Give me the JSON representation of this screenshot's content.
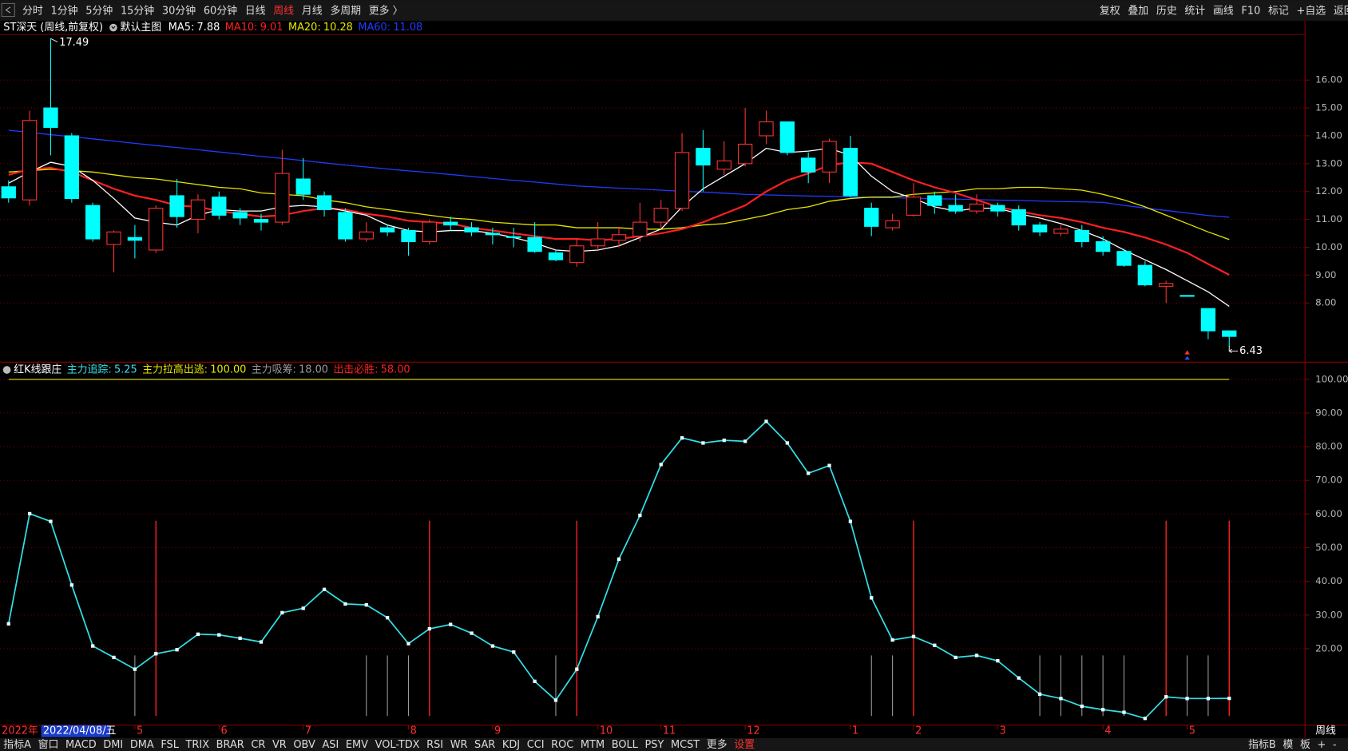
{
  "toolbar": {
    "periods": [
      "分时",
      "1分钟",
      "5分钟",
      "15分钟",
      "30分钟",
      "60分钟",
      "日线",
      "周线",
      "月线",
      "多周期",
      "更多 〉"
    ],
    "tools": [
      "复权",
      "叠加",
      "历史",
      "统计",
      "画线",
      "F10",
      "标记",
      "+自选",
      "返回"
    ]
  },
  "bottom_bar": {
    "indicators": [
      "指标A",
      "窗口",
      "MACD",
      "DMI",
      "DMA",
      "FSL",
      "TRIX",
      "BRAR",
      "CR",
      "VR",
      "OBV",
      "ASI",
      "EMV",
      "VOL-TDX",
      "RSI",
      "WR",
      "SAR",
      "KDJ",
      "CCI",
      "ROC",
      "MTM",
      "BOLL",
      "PSY",
      "MCST",
      "更多",
      "设置"
    ],
    "right": [
      "指标B",
      "模",
      "板",
      "+",
      "-"
    ]
  },
  "chart_data": [
    {
      "type": "candlestick",
      "title": "ST深天 (周线,前复权)",
      "subtitle": "默认主图",
      "open": [
        12.17,
        11.7,
        15.0,
        14.0,
        11.5,
        10.1,
        10.35,
        9.9,
        11.85,
        11.0,
        11.8,
        11.25,
        11.0,
        10.9,
        12.45,
        11.85,
        11.25,
        10.3,
        10.7,
        10.6,
        10.2,
        10.9,
        10.7,
        10.5,
        10.38,
        10.35,
        9.8,
        9.45,
        10.05,
        10.25,
        10.4,
        10.9,
        11.4,
        13.55,
        12.8,
        13.0,
        14.0,
        14.5,
        13.2,
        12.7,
        13.55,
        11.4,
        10.7,
        11.15,
        11.85,
        11.5,
        11.3,
        11.5,
        11.35,
        10.8,
        10.5,
        10.6,
        10.2,
        9.85,
        9.35,
        8.6,
        8.27,
        7.8,
        7.0
      ],
      "high": [
        12.4,
        14.9,
        17.49,
        14.1,
        11.6,
        10.6,
        10.8,
        11.5,
        12.45,
        11.9,
        12.0,
        11.4,
        11.2,
        13.5,
        13.2,
        12.0,
        11.4,
        10.9,
        10.8,
        10.7,
        11.0,
        11.1,
        10.9,
        10.7,
        10.7,
        10.9,
        9.9,
        10.3,
        10.9,
        10.7,
        11.6,
        11.7,
        14.1,
        14.2,
        13.8,
        15.0,
        14.9,
        14.5,
        13.4,
        13.9,
        14.0,
        11.6,
        11.2,
        12.3,
        12.0,
        11.9,
        11.9,
        11.6,
        11.5,
        10.9,
        10.8,
        10.8,
        10.4,
        9.95,
        9.5,
        8.8,
        8.27,
        7.8,
        7.0
      ],
      "low": [
        11.6,
        11.5,
        13.3,
        11.6,
        10.2,
        9.1,
        9.6,
        9.8,
        10.7,
        10.5,
        11.0,
        10.8,
        10.6,
        10.8,
        11.7,
        11.1,
        10.2,
        10.2,
        10.4,
        9.7,
        10.1,
        10.6,
        10.4,
        10.1,
        10.0,
        9.8,
        9.5,
        9.3,
        9.9,
        10.0,
        10.2,
        10.7,
        11.3,
        12.0,
        12.6,
        12.9,
        13.7,
        13.3,
        12.3,
        12.3,
        11.8,
        10.4,
        10.6,
        11.1,
        11.2,
        11.2,
        11.2,
        11.1,
        10.6,
        10.4,
        10.4,
        10.0,
        9.7,
        9.3,
        8.6,
        8.0,
        8.25,
        6.7,
        6.43
      ],
      "close": [
        11.77,
        14.55,
        14.3,
        11.75,
        10.3,
        10.55,
        10.25,
        11.4,
        11.1,
        11.7,
        11.15,
        11.05,
        10.9,
        12.65,
        11.9,
        11.35,
        10.3,
        10.55,
        10.55,
        10.2,
        10.9,
        10.8,
        10.55,
        10.45,
        10.36,
        9.85,
        9.55,
        10.05,
        10.3,
        10.45,
        10.9,
        11.4,
        13.4,
        12.95,
        13.1,
        13.7,
        14.5,
        13.4,
        12.7,
        13.8,
        11.85,
        10.75,
        10.95,
        11.8,
        11.5,
        11.3,
        11.55,
        11.3,
        10.8,
        10.55,
        10.65,
        10.2,
        9.85,
        9.35,
        8.65,
        8.7,
        8.25,
        7.0,
        6.8
      ],
      "up_color": "#ff3232",
      "down_color": "#00ffff",
      "series": [
        {
          "name": "MA5:",
          "value": 7.88,
          "color": "#ffffff",
          "values": [
            12.3,
            12.7,
            13.05,
            12.9,
            12.4,
            11.75,
            11.05,
            10.9,
            10.8,
            11.15,
            11.35,
            11.3,
            11.3,
            11.45,
            11.5,
            11.45,
            11.3,
            11.15,
            10.8,
            10.6,
            10.55,
            10.6,
            10.6,
            10.5,
            10.35,
            10.15,
            9.9,
            9.85,
            9.9,
            10.05,
            10.35,
            10.65,
            11.45,
            12.1,
            12.55,
            13.0,
            13.55,
            13.4,
            13.45,
            13.55,
            13.3,
            12.55,
            12.0,
            11.75,
            11.45,
            11.3,
            11.4,
            11.4,
            11.2,
            11.05,
            10.85,
            10.6,
            10.3,
            9.9,
            9.55,
            9.2,
            8.8,
            8.4,
            7.88
          ]
        },
        {
          "name": "MA10:",
          "value": 9.01,
          "color": "#ff2020",
          "values": [
            12.6,
            12.8,
            12.85,
            12.7,
            12.4,
            12.1,
            11.85,
            11.7,
            11.5,
            11.45,
            11.3,
            11.2,
            11.1,
            11.15,
            11.3,
            11.4,
            11.35,
            11.2,
            11.1,
            10.95,
            10.9,
            10.85,
            10.7,
            10.6,
            10.5,
            10.4,
            10.3,
            10.3,
            10.25,
            10.3,
            10.4,
            10.5,
            10.65,
            10.9,
            11.2,
            11.5,
            12.0,
            12.4,
            12.65,
            12.95,
            13.05,
            13.0,
            12.7,
            12.4,
            12.15,
            11.95,
            11.7,
            11.45,
            11.3,
            11.15,
            11.05,
            10.9,
            10.7,
            10.55,
            10.35,
            10.1,
            9.8,
            9.4,
            9.01
          ]
        },
        {
          "name": "MA20:",
          "value": 10.28,
          "color": "#e6e600",
          "values": [
            12.7,
            12.75,
            12.8,
            12.75,
            12.7,
            12.6,
            12.5,
            12.45,
            12.35,
            12.25,
            12.15,
            12.1,
            11.95,
            11.9,
            11.85,
            11.7,
            11.6,
            11.45,
            11.35,
            11.25,
            11.15,
            11.05,
            11.0,
            10.9,
            10.85,
            10.8,
            10.8,
            10.7,
            10.7,
            10.7,
            10.65,
            10.65,
            10.7,
            10.8,
            10.85,
            11.0,
            11.15,
            11.35,
            11.45,
            11.65,
            11.75,
            11.8,
            11.8,
            11.9,
            11.95,
            12.0,
            12.1,
            12.1,
            12.15,
            12.15,
            12.1,
            12.05,
            11.9,
            11.7,
            11.45,
            11.15,
            10.85,
            10.55,
            10.28
          ]
        },
        {
          "name": "MA60:",
          "value": 11.08,
          "color": "#1e3cff",
          "values": [
            14.2,
            14.12,
            14.04,
            13.97,
            13.89,
            13.81,
            13.73,
            13.65,
            13.58,
            13.5,
            13.42,
            13.34,
            13.26,
            13.19,
            13.11,
            13.03,
            12.95,
            12.88,
            12.81,
            12.74,
            12.68,
            12.61,
            12.54,
            12.47,
            12.4,
            12.34,
            12.27,
            12.2,
            12.16,
            12.12,
            12.09,
            12.05,
            12.01,
            11.98,
            11.94,
            11.9,
            11.88,
            11.86,
            11.84,
            11.83,
            11.81,
            11.79,
            11.78,
            11.76,
            11.74,
            11.73,
            11.71,
            11.69,
            11.68,
            11.66,
            11.64,
            11.63,
            11.61,
            11.5,
            11.41,
            11.32,
            11.23,
            11.14,
            11.08
          ]
        }
      ],
      "ylim": [
        5.907,
        17.636
      ],
      "yticks": [
        {
          "value": 8,
          "label": "8.00"
        },
        {
          "value": 9,
          "label": "9.00"
        },
        {
          "value": 10,
          "label": "10.00"
        },
        {
          "value": 11,
          "label": "11.00"
        },
        {
          "value": 12,
          "label": "12.00"
        },
        {
          "value": 13,
          "label": "13.00"
        },
        {
          "value": 14,
          "label": "14.00"
        },
        {
          "value": 15,
          "label": "15.00"
        },
        {
          "value": 16,
          "label": "16.00"
        }
      ],
      "grid": true
    },
    {
      "type": "line",
      "title": "红K线跟庄",
      "x_start_label": "2022年",
      "cursor_label": "2022/04/08/五",
      "period_label": "周线",
      "categories": [
        null,
        null,
        null,
        null,
        null,
        null,
        "5",
        null,
        null,
        null,
        "6",
        null,
        null,
        null,
        "7",
        null,
        null,
        null,
        null,
        "8",
        null,
        null,
        null,
        "9",
        null,
        null,
        null,
        null,
        "10",
        null,
        null,
        "11",
        null,
        null,
        null,
        "12",
        null,
        null,
        null,
        null,
        "1",
        null,
        null,
        "2",
        null,
        null,
        null,
        "3",
        null,
        null,
        null,
        null,
        "4",
        null,
        null,
        null,
        "5",
        null,
        null
      ],
      "series": [
        {
          "name": "主力追踪:",
          "value": 5.25,
          "color": "#33e0e8",
          "values": [
            27.4,
            60.1,
            57.8,
            38.9,
            20.8,
            17.4,
            13.9,
            18.5,
            19.7,
            24.3,
            24.1,
            23.1,
            22.0,
            30.7,
            32.0,
            37.6,
            33.3,
            33.0,
            29.2,
            21.5,
            25.9,
            27.2,
            24.6,
            20.8,
            19.0,
            10.3,
            4.7,
            13.9,
            29.5,
            46.6,
            59.6,
            74.7,
            82.6,
            81.1,
            81.9,
            81.6,
            87.5,
            81.1,
            72.1,
            74.4,
            57.8,
            35.1,
            22.6,
            23.6,
            21.0,
            17.4,
            18.0,
            16.4,
            11.3,
            6.5,
            5.2,
            2.9,
            1.9,
            1.1,
            -0.7,
            5.7,
            5.2,
            5.2,
            5.25
          ]
        },
        {
          "name": "主力拉高出逃:",
          "value": 100,
          "value_label": "100.00",
          "color": "#e6e600"
        },
        {
          "name": "主力吸筹:",
          "value": 18,
          "value_label": "18.00",
          "color": "#9a9a9a",
          "signals": [
            6,
            17,
            18,
            19,
            26,
            41,
            42,
            49,
            50,
            51,
            52,
            53,
            56,
            57
          ]
        },
        {
          "name": "出击必胜:",
          "value": 58,
          "value_label": "58.00",
          "color": "#ff2020",
          "signals": [
            7,
            20,
            27,
            43,
            55,
            58
          ]
        }
      ],
      "ylim": [
        -2.7,
        105.1
      ],
      "yticks": [
        {
          "value": 20,
          "label": "20.00"
        },
        {
          "value": 30,
          "label": "30.00"
        },
        {
          "value": 40,
          "label": "40.00"
        },
        {
          "value": 50,
          "label": "50.00"
        },
        {
          "value": 60,
          "label": "60.00"
        },
        {
          "value": 70,
          "label": "70.00"
        },
        {
          "value": 80,
          "label": "80.00"
        },
        {
          "value": 90,
          "label": "90.00"
        },
        {
          "value": 100,
          "label": "100.00"
        }
      ],
      "grid": true
    }
  ]
}
